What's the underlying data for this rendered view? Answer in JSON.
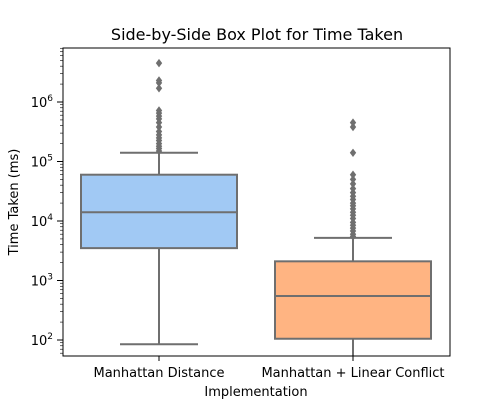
{
  "chart_data": {
    "type": "box",
    "title": "Side-by-Side Box Plot for Time Taken",
    "xlabel": "Implementation",
    "ylabel": "Time Taken (ms)",
    "yscale": "log",
    "ylim": [
      50,
      8000000
    ],
    "yticks": [
      {
        "base": "10",
        "exp": "2"
      },
      {
        "base": "10",
        "exp": "3"
      },
      {
        "base": "10",
        "exp": "4"
      },
      {
        "base": "10",
        "exp": "5"
      },
      {
        "base": "10",
        "exp": "6"
      }
    ],
    "categories": [
      "Manhattan Distance",
      "Manhattan + Linear Conflict"
    ],
    "colors": [
      "#a1c9f4",
      "#ffb482"
    ],
    "line_color": "#6f6f6f",
    "boxes": [
      {
        "name": "Manhattan Distance",
        "whisker_low": 85,
        "q1": 3500,
        "median": 14000,
        "q3": 60000,
        "whisker_high": 140000,
        "fliers": [
          150000,
          165000,
          180000,
          200000,
          225000,
          250000,
          280000,
          320000,
          380000,
          450000,
          520000,
          580000,
          650000,
          720000,
          1700000,
          2100000,
          2300000,
          4500000
        ]
      },
      {
        "name": "Manhattan + Linear Conflict",
        "whisker_low": 50,
        "q1": 105,
        "median": 550,
        "q3": 2100,
        "whisker_high": 5200,
        "fliers": [
          5500,
          6000,
          6800,
          7600,
          8500,
          9500,
          11000,
          12500,
          14000,
          16000,
          18000,
          20000,
          23000,
          26000,
          30000,
          35000,
          42000,
          50000,
          60000,
          140000,
          380000,
          450000
        ]
      }
    ]
  }
}
